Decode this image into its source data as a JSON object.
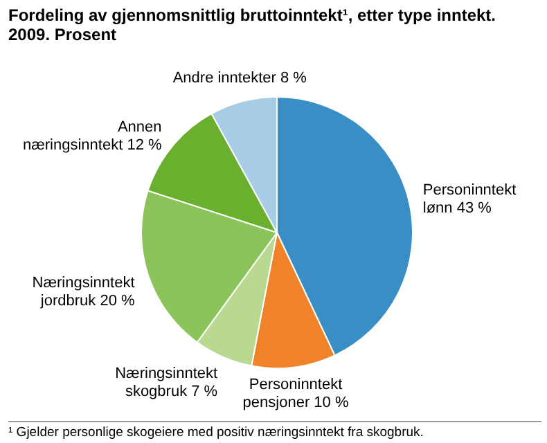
{
  "chart_data": {
    "type": "pie",
    "title": "Fordeling av gjennomsnittlig bruttoinntekt¹, etter type inntekt. 2009. Prosent",
    "categories": [
      "Personinntekt lønn",
      "Personinntekt pensjoner",
      "Næringsinntekt skogbruk",
      "Næringsinntekt jordbruk",
      "Annen næringsinntekt",
      "Andre inntekter"
    ],
    "values": [
      43,
      10,
      7,
      20,
      12,
      8
    ],
    "colors": [
      "#3a8ec6",
      "#f0822a",
      "#b8d98f",
      "#8bc45a",
      "#6ab02e",
      "#a6cce6"
    ],
    "value_labels": [
      "43 %",
      "10 %",
      "7 %",
      "20 %",
      "12 %",
      "8 %"
    ],
    "annotations": [
      "¹ Gjelder personlige skogeiere med positiv næringsinntekt fra skogbruk."
    ]
  }
}
